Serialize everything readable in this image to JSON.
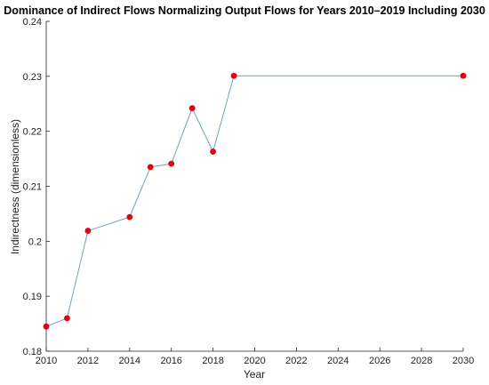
{
  "chart_data": {
    "type": "line",
    "title": "Dominance of Indirect Flows Normalizing Output Flows for Years 2010–2019 Including 2030",
    "xlabel": "Year",
    "ylabel": "Indirectness (dimensionless)",
    "xlim": [
      2010,
      2030
    ],
    "ylim": [
      0.18,
      0.24
    ],
    "xticks": [
      2010,
      2012,
      2014,
      2016,
      2018,
      2020,
      2022,
      2024,
      2026,
      2028,
      2030
    ],
    "yticks": [
      0.18,
      0.19,
      0.2,
      0.21,
      0.22,
      0.23,
      0.24
    ],
    "ytick_labels": [
      "0.18",
      "0.19",
      "0.2",
      "0.21",
      "0.22",
      "0.23",
      "0.24"
    ],
    "grid": false,
    "series": [
      {
        "x": [
          2010,
          2011,
          2012,
          2014,
          2015,
          2016,
          2017,
          2018,
          2019,
          2030
        ],
        "y": [
          0.1845,
          0.186,
          0.2019,
          0.2044,
          0.2135,
          0.2141,
          0.2242,
          0.2163,
          0.2301,
          0.2301
        ],
        "line_color": "#6aa2c9",
        "marker_color": "#e3000f"
      }
    ]
  }
}
